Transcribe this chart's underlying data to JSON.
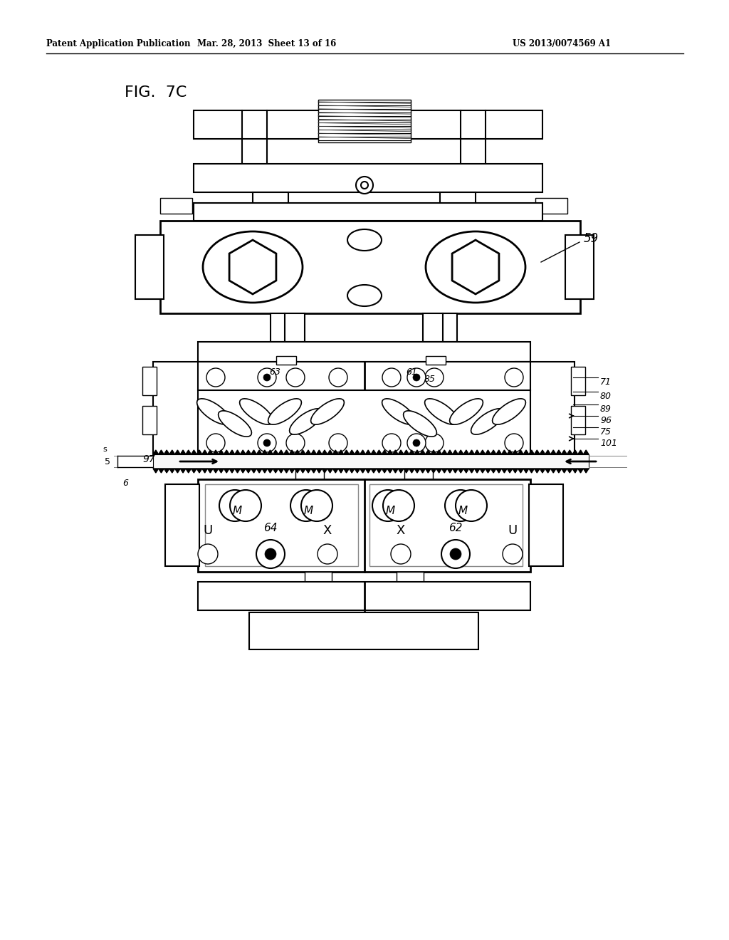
{
  "bg_color": "#ffffff",
  "line_color": "#000000",
  "header_left": "Patent Application Publication",
  "header_mid": "Mar. 28, 2013  Sheet 13 of 16",
  "header_right": "US 2013/0074569 A1",
  "fig_label": "FIG.  7C"
}
